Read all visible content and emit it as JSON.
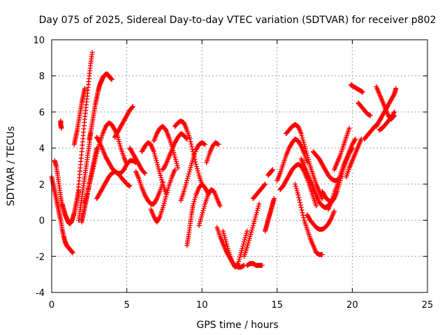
{
  "chart_data": {
    "type": "scatter",
    "title": "Day 075 of 2025, Sidereal Day-to-day VTEC variation (SDTVAR) for receiver p802",
    "xlabel": "GPS time / hours",
    "ylabel": "SDTVAR / TECUs",
    "xlim": [
      0,
      25
    ],
    "ylim": [
      -4,
      10
    ],
    "xticks": [
      0,
      5,
      10,
      15,
      20,
      25
    ],
    "yticks": [
      -4,
      -2,
      0,
      2,
      4,
      6,
      8,
      10
    ],
    "xtick_labels": [
      "0",
      "5",
      "10",
      "15",
      "20",
      "25"
    ],
    "ytick_labels": [
      "-4",
      "-2",
      "0",
      "2",
      "4",
      "6",
      "8",
      "10"
    ],
    "grid": true,
    "marker": "plus",
    "color": "#ff0000",
    "series": [
      {
        "x": [
          0.0,
          0.1,
          0.2,
          0.3,
          0.4,
          0.5,
          0.6,
          0.7,
          0.8,
          0.9,
          1.0,
          1.1,
          1.2,
          1.3,
          1.4
        ],
        "y": [
          2.4,
          2.0,
          1.6,
          1.2,
          0.8,
          0.4,
          0.0,
          -0.5,
          -0.9,
          -1.2,
          -1.4,
          -1.5,
          -1.6,
          -1.7,
          -1.8
        ]
      },
      {
        "x": [
          0.2,
          0.3,
          0.4,
          0.5,
          0.6,
          0.7
        ],
        "y": [
          3.3,
          3.0,
          2.5,
          1.9,
          1.3,
          0.8
        ]
      },
      {
        "x": [
          0.6,
          0.6,
          0.65
        ],
        "y": [
          5.5,
          5.3,
          5.1
        ]
      },
      {
        "x": [
          0.7,
          0.8,
          0.9,
          1.0,
          1.1,
          1.2,
          1.3,
          1.4,
          1.5,
          1.6,
          1.7,
          1.8
        ],
        "y": [
          0.9,
          0.6,
          0.3,
          0.1,
          -0.1,
          -0.2,
          -0.1,
          0.1,
          0.4,
          0.8,
          1.2,
          1.6
        ]
      },
      {
        "x": [
          1.5,
          1.6,
          1.7,
          1.8,
          1.9,
          2.0,
          2.1,
          2.2
        ],
        "y": [
          4.2,
          4.6,
          5.0,
          5.5,
          6.0,
          6.5,
          6.9,
          7.3
        ]
      },
      {
        "x": [
          1.7,
          1.8,
          1.9,
          2.0,
          2.1,
          2.2,
          2.3,
          2.4,
          2.5,
          2.6,
          2.7
        ],
        "y": [
          1.2,
          2.0,
          2.9,
          3.8,
          4.7,
          5.6,
          6.4,
          7.2,
          8.0,
          8.7,
          9.3
        ]
      },
      {
        "x": [
          1.8,
          1.9,
          2.0,
          2.1,
          2.2,
          2.3,
          2.4,
          2.5,
          2.6
        ],
        "y": [
          0.0,
          0.6,
          1.2,
          1.8,
          2.4,
          3.0,
          3.6,
          4.2,
          4.8
        ]
      },
      {
        "x": [
          2.0,
          2.1,
          2.2,
          2.3,
          2.4,
          2.5,
          2.6,
          2.7,
          2.8,
          2.9,
          3.0
        ],
        "y": [
          -0.1,
          0.3,
          0.7,
          1.1,
          1.5,
          2.0,
          2.4,
          2.8,
          3.2,
          3.6,
          4.0
        ]
      },
      {
        "x": [
          2.5,
          2.6,
          2.7,
          2.8,
          2.9,
          3.0,
          3.1,
          3.2,
          3.3,
          3.4,
          3.5,
          3.6,
          3.7,
          3.8,
          3.9,
          4.0
        ],
        "y": [
          4.5,
          4.9,
          5.4,
          5.9,
          6.4,
          6.8,
          7.2,
          7.5,
          7.7,
          7.9,
          8.0,
          8.1,
          8.1,
          8.0,
          7.9,
          7.8
        ]
      },
      {
        "x": [
          2.2,
          2.4,
          2.6,
          2.8,
          3.0,
          3.2,
          3.4,
          3.6,
          3.8,
          4.0,
          4.2,
          4.4,
          4.6,
          4.8,
          5.0
        ],
        "y": [
          1.0,
          1.6,
          2.3,
          3.0,
          3.7,
          4.3,
          4.8,
          5.2,
          5.4,
          5.3,
          5.0,
          4.6,
          4.0,
          3.5,
          3.1
        ]
      },
      {
        "x": [
          3.0,
          3.2,
          3.4,
          3.6,
          3.8,
          4.0,
          4.2,
          4.4,
          4.6,
          4.8,
          5.0,
          5.2,
          5.4,
          5.6
        ],
        "y": [
          4.6,
          4.3,
          3.9,
          3.5,
          3.2,
          2.9,
          2.7,
          2.6,
          2.6,
          2.8,
          3.1,
          3.3,
          3.3,
          3.2
        ]
      },
      {
        "x": [
          3.0,
          3.2,
          3.4,
          3.6,
          3.8,
          4.0,
          4.2,
          4.4,
          4.6,
          4.8,
          5.0,
          5.2
        ],
        "y": [
          1.2,
          1.5,
          1.8,
          2.1,
          2.4,
          2.6,
          2.7,
          2.6,
          2.4,
          2.2,
          2.0,
          1.9
        ]
      },
      {
        "x": [
          4.2,
          4.4,
          4.6,
          4.8,
          5.0,
          5.2,
          5.4
        ],
        "y": [
          4.6,
          4.9,
          5.2,
          5.5,
          5.8,
          6.1,
          6.3
        ]
      },
      {
        "x": [
          5.2,
          5.4,
          5.6,
          5.8,
          6.0,
          6.2
        ],
        "y": [
          4.0,
          3.7,
          3.4,
          3.1,
          2.8,
          2.6
        ]
      },
      {
        "x": [
          5.6,
          5.8,
          6.0,
          6.2,
          6.4,
          6.6,
          6.8,
          7.0,
          7.2,
          7.4
        ],
        "y": [
          2.7,
          2.3,
          1.8,
          1.4,
          1.1,
          0.9,
          0.9,
          1.2,
          1.6,
          2.1
        ]
      },
      {
        "x": [
          6.0,
          6.2,
          6.4,
          6.6,
          6.8,
          7.0,
          7.2,
          7.4,
          7.6
        ],
        "y": [
          3.8,
          4.1,
          4.3,
          4.2,
          3.8,
          3.2,
          2.6,
          2.0,
          1.5
        ]
      },
      {
        "x": [
          6.6,
          6.8,
          7.0,
          7.2,
          7.4,
          7.6,
          7.8,
          8.0,
          8.2
        ],
        "y": [
          0.6,
          0.2,
          -0.1,
          0.2,
          0.7,
          1.3,
          1.9,
          2.4,
          2.8
        ]
      },
      {
        "x": [
          6.8,
          7.0,
          7.2,
          7.4,
          7.6,
          7.8,
          8.0,
          8.2,
          8.4
        ],
        "y": [
          4.4,
          4.8,
          5.1,
          5.2,
          5.0,
          4.6,
          4.1,
          3.5,
          2.9
        ]
      },
      {
        "x": [
          7.4,
          7.6,
          7.8,
          8.0,
          8.2,
          8.4,
          8.6,
          8.8,
          9.0
        ],
        "y": [
          2.8,
          3.1,
          3.5,
          3.9,
          4.3,
          4.6,
          4.8,
          4.7,
          4.5
        ]
      },
      {
        "x": [
          8.2,
          8.4,
          8.6,
          8.8,
          9.0,
          9.2,
          9.4,
          9.6,
          9.8,
          10.0
        ],
        "y": [
          5.2,
          5.4,
          5.5,
          5.4,
          5.0,
          4.5,
          3.8,
          3.1,
          2.5,
          2.0
        ]
      },
      {
        "x": [
          8.6,
          8.8,
          9.0,
          9.2,
          9.4,
          9.6,
          9.8,
          10.0,
          10.2
        ],
        "y": [
          1.1,
          1.6,
          2.2,
          2.8,
          3.4,
          3.9,
          4.2,
          4.3,
          4.2
        ]
      },
      {
        "x": [
          9.0,
          9.1,
          9.2,
          9.3,
          9.4,
          9.6,
          9.8,
          10.0,
          10.2,
          10.4
        ],
        "y": [
          -1.4,
          -0.9,
          -0.3,
          0.3,
          0.8,
          1.4,
          1.8,
          2.0,
          1.8,
          1.5
        ]
      },
      {
        "x": [
          9.8,
          10.0,
          10.2,
          10.4,
          10.6,
          10.8,
          11.0,
          11.2
        ],
        "y": [
          -0.3,
          0.3,
          0.9,
          1.4,
          1.7,
          1.6,
          1.2,
          0.8
        ]
      },
      {
        "x": [
          10.3,
          10.5,
          10.7,
          10.9,
          11.1
        ],
        "y": [
          3.2,
          3.7,
          4.1,
          4.3,
          4.2
        ]
      },
      {
        "x": [
          11.0,
          11.2,
          11.4,
          11.6,
          11.8,
          12.0,
          12.2,
          12.4,
          12.6,
          12.8
        ],
        "y": [
          -0.4,
          -0.9,
          -1.3,
          -1.7,
          -2.0,
          -2.3,
          -2.5,
          -2.6,
          -2.6,
          -2.5
        ]
      },
      {
        "x": [
          11.4,
          11.6,
          11.8,
          12.0,
          12.2,
          12.4,
          12.6,
          12.8,
          13.0
        ],
        "y": [
          -0.6,
          -1.2,
          -1.8,
          -2.3,
          -2.6,
          -2.4,
          -1.8,
          -1.2,
          -0.6
        ]
      },
      {
        "x": [
          12.8,
          13.0,
          13.2,
          13.4,
          13.6,
          13.8
        ],
        "y": [
          -2.0,
          -1.5,
          -0.9,
          -0.3,
          0.3,
          0.9
        ]
      },
      {
        "x": [
          13.0,
          13.2,
          13.4,
          13.6,
          13.8,
          14.0
        ],
        "y": [
          -2.5,
          -2.4,
          -2.4,
          -2.5,
          -2.5,
          -2.5
        ]
      },
      {
        "x": [
          13.4,
          13.6,
          13.8,
          14.0,
          14.2
        ],
        "y": [
          1.2,
          1.4,
          1.6,
          1.8,
          2.0
        ]
      },
      {
        "x": [
          14.2,
          14.3,
          14.4,
          14.5,
          14.6,
          14.7,
          14.8
        ],
        "y": [
          -0.6,
          -0.3,
          0.0,
          0.3,
          0.6,
          0.9,
          1.2
        ]
      },
      {
        "x": [
          14.4,
          14.5,
          14.6,
          14.7
        ],
        "y": [
          2.5,
          2.6,
          2.7,
          2.8
        ]
      },
      {
        "x": [
          15.0,
          15.2,
          15.4,
          15.6,
          15.8,
          16.0,
          16.2,
          16.4,
          16.6,
          16.8,
          17.0
        ],
        "y": [
          2.2,
          2.6,
          3.1,
          3.6,
          4.0,
          4.3,
          4.5,
          4.4,
          4.1,
          3.7,
          3.2
        ]
      },
      {
        "x": [
          15.2,
          15.4,
          15.6,
          15.8,
          16.0,
          16.2,
          16.4,
          16.6,
          16.8,
          17.0,
          17.2,
          17.4,
          17.6
        ],
        "y": [
          1.7,
          1.9,
          2.2,
          2.5,
          2.8,
          3.0,
          3.1,
          3.0,
          2.7,
          2.3,
          1.8,
          1.3,
          0.8
        ]
      },
      {
        "x": [
          15.6,
          15.8,
          16.0,
          16.2,
          16.4,
          16.6,
          16.8,
          17.0,
          17.2,
          17.4,
          17.6,
          17.8,
          18.0
        ],
        "y": [
          4.8,
          5.0,
          5.2,
          5.3,
          5.2,
          4.8,
          4.2,
          3.6,
          3.0,
          2.5,
          2.0,
          1.6,
          1.2
        ]
      },
      {
        "x": [
          16.2,
          16.4,
          16.6,
          16.8,
          17.0,
          17.2,
          17.4,
          17.6,
          17.8,
          18.0
        ],
        "y": [
          2.0,
          1.4,
          0.7,
          0.0,
          -0.5,
          -1.0,
          -1.4,
          -1.8,
          -1.9,
          -1.9
        ]
      },
      {
        "x": [
          16.6,
          16.8,
          17.0,
          17.2,
          17.4,
          17.6,
          17.8,
          18.0,
          18.2,
          18.4,
          18.6,
          18.8
        ],
        "y": [
          3.4,
          3.0,
          2.6,
          2.2,
          1.8,
          1.4,
          1.0,
          0.8,
          0.7,
          0.8,
          1.0,
          1.3
        ]
      },
      {
        "x": [
          17.0,
          17.2,
          17.4,
          17.6,
          17.8,
          18.0,
          18.2,
          18.4,
          18.6,
          18.8
        ],
        "y": [
          0.3,
          0.0,
          -0.2,
          -0.4,
          -0.5,
          -0.5,
          -0.4,
          -0.2,
          0.1,
          0.5
        ]
      },
      {
        "x": [
          17.4,
          17.6,
          17.8,
          18.0,
          18.2,
          18.4,
          18.6,
          18.8,
          19.0,
          19.2
        ],
        "y": [
          3.8,
          3.6,
          3.4,
          3.1,
          2.8,
          2.5,
          2.3,
          2.2,
          2.2,
          2.4
        ]
      },
      {
        "x": [
          18.0,
          18.2,
          18.4,
          18.6,
          18.8,
          19.0,
          19.2,
          19.4,
          19.6,
          19.8,
          20.0
        ],
        "y": [
          1.6,
          1.3,
          1.1,
          1.0,
          1.2,
          1.6,
          2.2,
          2.8,
          3.3,
          3.7,
          4.0
        ]
      },
      {
        "x": [
          18.4,
          18.6,
          18.8,
          19.0,
          19.2,
          19.4,
          19.6,
          19.8,
          20.0,
          20.2
        ],
        "y": [
          0.6,
          1.0,
          1.5,
          2.0,
          2.5,
          3.0,
          3.4,
          3.8,
          4.2,
          4.5
        ]
      },
      {
        "x": [
          18.8,
          19.0,
          19.2,
          19.4,
          19.6,
          19.8
        ],
        "y": [
          2.8,
          3.2,
          3.6,
          4.1,
          4.6,
          5.1
        ]
      },
      {
        "x": [
          19.6,
          19.8,
          20.0,
          20.2,
          20.4,
          20.6
        ],
        "y": [
          2.4,
          2.9,
          3.3,
          3.7,
          4.1,
          4.5
        ]
      },
      {
        "x": [
          19.9,
          20.1,
          20.3,
          20.5,
          20.7
        ],
        "y": [
          7.5,
          7.4,
          7.3,
          7.2,
          7.1
        ]
      },
      {
        "x": [
          20.4,
          20.6,
          20.8,
          21.0,
          21.2
        ],
        "y": [
          6.5,
          6.3,
          6.1,
          5.9,
          5.8
        ]
      },
      {
        "x": [
          20.8,
          21.0,
          21.2,
          21.4,
          21.6
        ],
        "y": [
          4.5,
          4.7,
          4.9,
          5.1,
          5.3
        ]
      },
      {
        "x": [
          21.6,
          21.8,
          22.0,
          22.2,
          22.4,
          22.6,
          22.8
        ],
        "y": [
          7.4,
          7.0,
          6.6,
          6.2,
          5.8,
          5.6,
          5.8
        ]
      },
      {
        "x": [
          21.6,
          21.8,
          22.0,
          22.2,
          22.4,
          22.6,
          22.8,
          22.9
        ],
        "y": [
          5.2,
          5.5,
          5.8,
          6.1,
          6.4,
          6.7,
          7.0,
          7.3
        ]
      },
      {
        "x": [
          21.8,
          22.0,
          22.2,
          22.4,
          22.6,
          22.8
        ],
        "y": [
          5.0,
          5.1,
          5.3,
          5.5,
          5.7,
          6.0
        ]
      }
    ]
  }
}
